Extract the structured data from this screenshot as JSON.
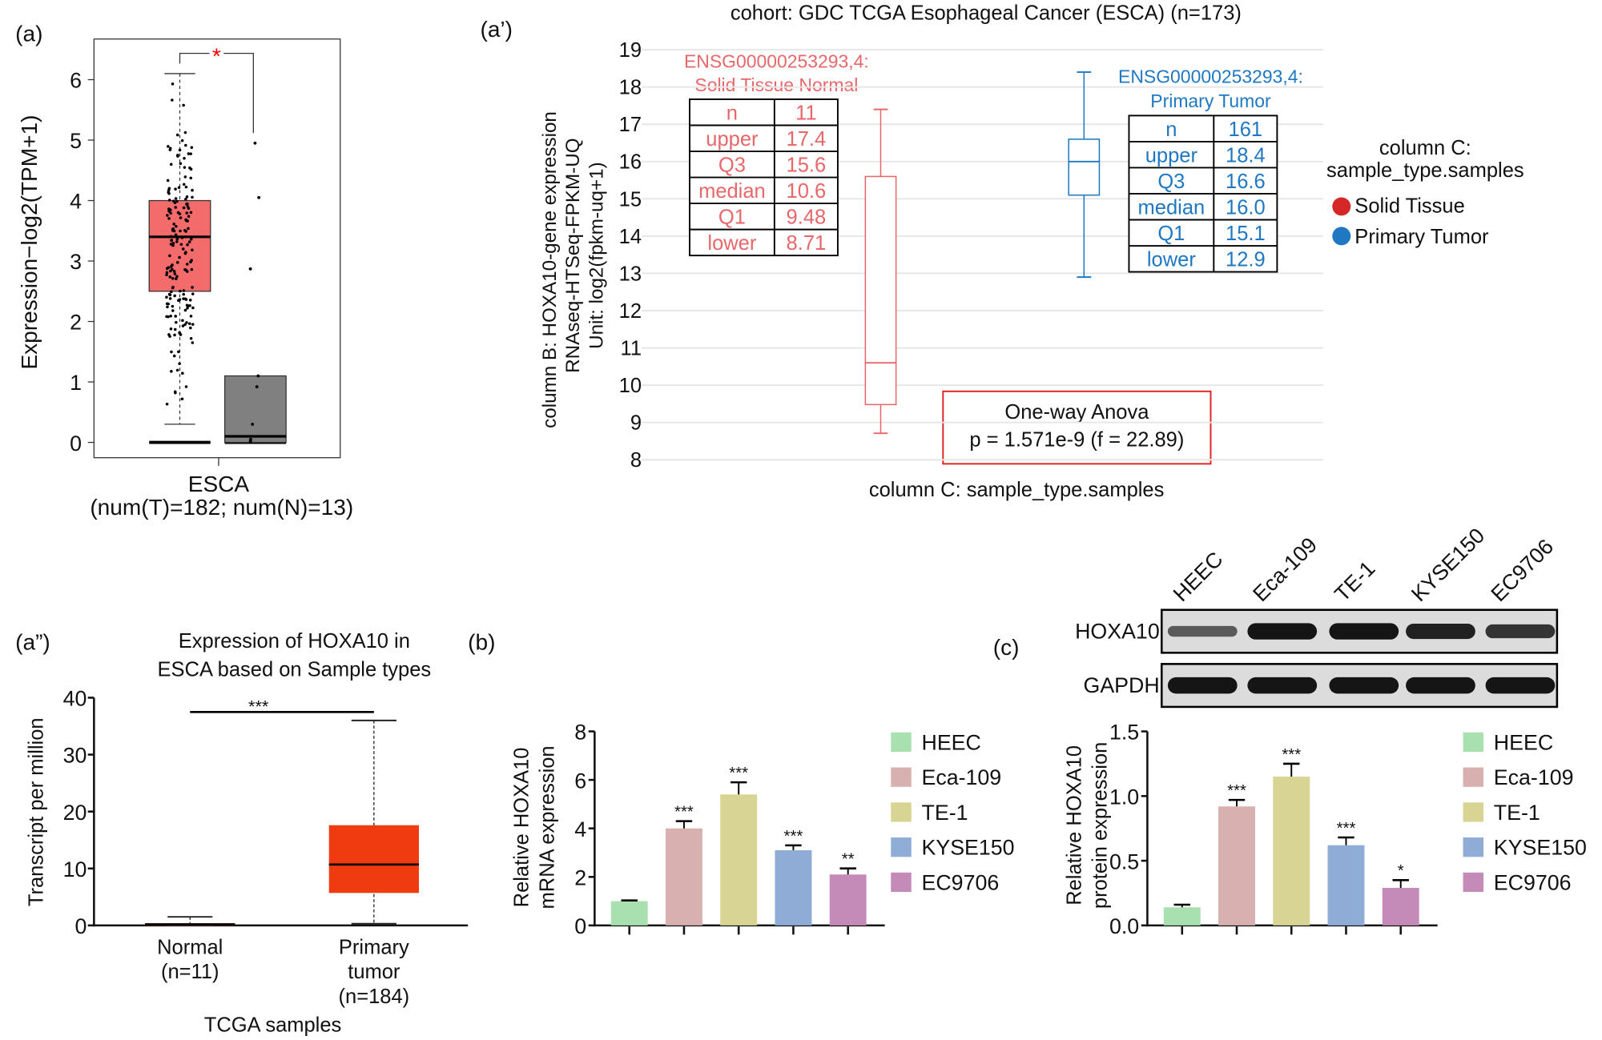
{
  "chart_data": [
    {
      "panel": "(a)",
      "type": "box",
      "ylabel": "Expression−log2(TPM+1)",
      "ylim": [
        0,
        6.5
      ],
      "yticks": [
        "0",
        "1",
        "2",
        "3",
        "4",
        "5",
        "6"
      ],
      "xlabel": "ESCA",
      "xsublabel": "(num(T)=182; num(N)=13)",
      "significance": "*",
      "series": [
        {
          "group": "T",
          "color": "#f36b6b",
          "q1": 2.5,
          "median": 3.4,
          "q3": 4.0,
          "lower": 0.3,
          "upper": 6.1
        },
        {
          "group": "N",
          "color": "#808080",
          "q1": 0.0,
          "median": 0.1,
          "q3": 1.1,
          "lower": 0.0,
          "upper": 1.1,
          "points": [
            4.95,
            4.05,
            2.87,
            1.1,
            0.92,
            0.3,
            0.05,
            0.03,
            0.0
          ]
        }
      ]
    },
    {
      "panel": "(a’)",
      "type": "box",
      "title": "cohort: GDC TCGA Esophageal Cancer (ESCA) (n=173)",
      "ylabel_lines": [
        "column B: HOXA10-gene expression",
        "RNAseq-HTSeq-FPKM-UQ",
        "Unit: log2(fpkm-uq+1)"
      ],
      "xlabel": "column C: sample_type.samples",
      "ylim": [
        8,
        19
      ],
      "yticks": [
        "8",
        "9",
        "10",
        "11",
        "12",
        "13",
        "14",
        "15",
        "16",
        "17",
        "18",
        "19"
      ],
      "grid": true,
      "legend": {
        "title_lines": [
          "column C:",
          "sample_type.samples"
        ],
        "items": [
          {
            "label": "Solid Tissue",
            "color": "#d62728"
          },
          {
            "label": "Primary Tumor",
            "color": "#1f78c1"
          }
        ],
        "position": "right"
      },
      "series": [
        {
          "header_lines": [
            "ENSG00000253293,4:",
            "Solid Tissue Normal"
          ],
          "color": "#e8676a",
          "stats": [
            [
              "n",
              "11"
            ],
            [
              "upper",
              "17.4"
            ],
            [
              "Q3",
              "15.6"
            ],
            [
              "median",
              "10.6"
            ],
            [
              "Q1",
              "9.48"
            ],
            [
              "lower",
              "8.71"
            ]
          ],
          "upper": 17.4,
          "q3": 15.6,
          "median": 10.6,
          "q1": 9.48,
          "lower": 8.71
        },
        {
          "header_lines": [
            "ENSG00000253293,4:",
            "Primary Tumor"
          ],
          "color": "#1f78c1",
          "stats": [
            [
              "n",
              "161"
            ],
            [
              "upper",
              "18.4"
            ],
            [
              "Q3",
              "16.6"
            ],
            [
              "median",
              "16.0"
            ],
            [
              "Q1",
              "15.1"
            ],
            [
              "lower",
              "12.9"
            ]
          ],
          "upper": 18.4,
          "q3": 16.6,
          "median": 16.0,
          "q1": 15.1,
          "lower": 12.9
        }
      ],
      "annotation_lines": [
        "One-way Anova",
        "p = 1.571e-9 (f = 22.89)"
      ]
    },
    {
      "panel": "(a”)",
      "type": "box",
      "title_lines": [
        "Expression of HOXA10 in",
        "ESCA based on Sample types"
      ],
      "ylabel": "Transcript per million",
      "xlabel": "TCGA samples",
      "ylim": [
        0,
        40
      ],
      "yticks": [
        "0",
        "10",
        "20",
        "30",
        "40"
      ],
      "significance": "***",
      "series": [
        {
          "label_lines": [
            "Normal",
            "(n=11)"
          ],
          "color": "#f03a10",
          "q1": 0.0,
          "median": 0.2,
          "q3": 0.3,
          "lower": 0.0,
          "upper": 1.5
        },
        {
          "label_lines": [
            "Primary",
            "tumor",
            "(n=184)"
          ],
          "color": "#f03a10",
          "q1": 5.7,
          "median": 10.7,
          "q3": 17.6,
          "lower": 0.3,
          "upper": 36
        }
      ]
    },
    {
      "panel": "(b)",
      "type": "bar",
      "ylabel_lines": [
        "Relative HOXA10",
        "mRNA expression"
      ],
      "ylim": [
        0,
        8
      ],
      "yticks": [
        "0",
        "2",
        "4",
        "6",
        "8"
      ],
      "categories": [
        "HEEC",
        "Eca-109",
        "TE-1",
        "KYSE150",
        "EC9706"
      ],
      "values": [
        1.0,
        4.0,
        5.4,
        3.1,
        2.1
      ],
      "errors": [
        0.03,
        0.3,
        0.5,
        0.2,
        0.25
      ],
      "significance": [
        "",
        "***",
        "***",
        "***",
        "**"
      ],
      "colors": [
        "#a8e0b0",
        "#d9b0b0",
        "#d8d594",
        "#8eacd6",
        "#c48bb8"
      ],
      "legend_position": "right"
    },
    {
      "panel": "(c)",
      "type": "bar",
      "ylabel_lines": [
        "Relative HOXA10",
        "protein expression"
      ],
      "ylim": [
        0,
        1.5
      ],
      "yticks": [
        "0.0",
        "0.5",
        "1.0",
        "1.5"
      ],
      "categories": [
        "HEEC",
        "Eca-109",
        "TE-1",
        "KYSE150",
        "EC9706"
      ],
      "values": [
        0.14,
        0.92,
        1.15,
        0.62,
        0.29
      ],
      "errors": [
        0.02,
        0.05,
        0.1,
        0.06,
        0.06
      ],
      "significance": [
        "",
        "***",
        "***",
        "***",
        "*"
      ],
      "colors": [
        "#a8e0b0",
        "#d9b0b0",
        "#d8d594",
        "#8eacd6",
        "#c48bb8"
      ],
      "legend_position": "right",
      "blot": {
        "lanes": [
          "HEEC",
          "Eca-109",
          "TE-1",
          "KYSE150",
          "EC9706"
        ],
        "rows": [
          {
            "label": "HOXA10",
            "intensity": [
              0.45,
              1.0,
              1.0,
              0.9,
              0.75
            ]
          },
          {
            "label": "GAPDH",
            "intensity": [
              1.0,
              1.0,
              1.0,
              1.0,
              1.0
            ]
          }
        ]
      }
    }
  ]
}
